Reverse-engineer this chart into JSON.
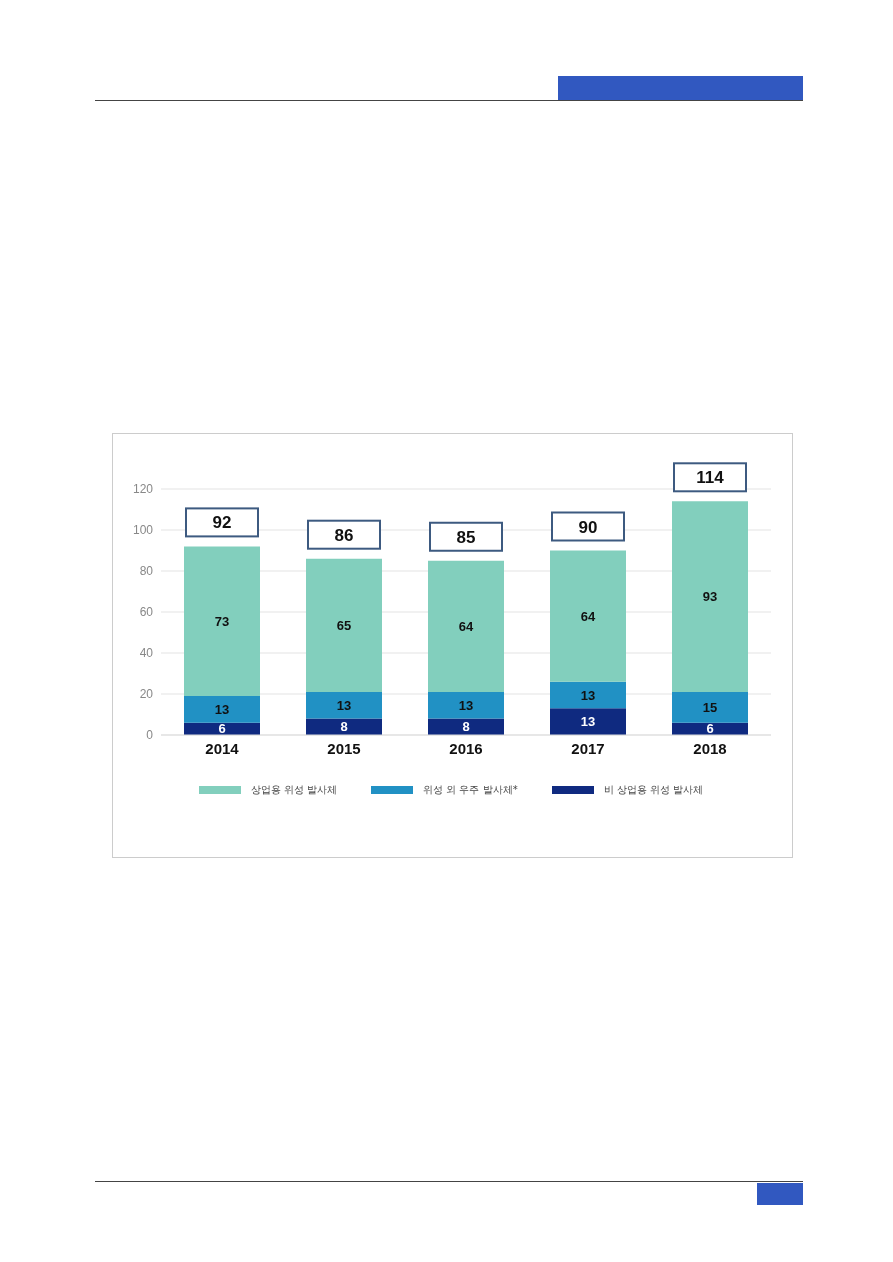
{
  "chart_data": {
    "type": "bar",
    "stacked": true,
    "categories": [
      "2014",
      "2015",
      "2016",
      "2017",
      "2018"
    ],
    "series": [
      {
        "name": "비 상업용 위성 발사체",
        "color": "#0f2a80",
        "values": [
          6,
          8,
          8,
          13,
          6
        ]
      },
      {
        "name": "위성 외 우주 발사체*",
        "color": "#2191c4",
        "values": [
          13,
          13,
          13,
          13,
          15
        ]
      },
      {
        "name": "상업용 위성 발사체",
        "color": "#82cfbd",
        "values": [
          73,
          65,
          64,
          64,
          93
        ]
      }
    ],
    "totals": [
      "92",
      "86",
      "85",
      "90",
      "114"
    ],
    "ylim": [
      0,
      120
    ],
    "yticks": [
      0,
      20,
      40,
      60,
      80,
      100,
      120
    ],
    "grid": "y",
    "legend": "bottom",
    "data_labels": true
  }
}
